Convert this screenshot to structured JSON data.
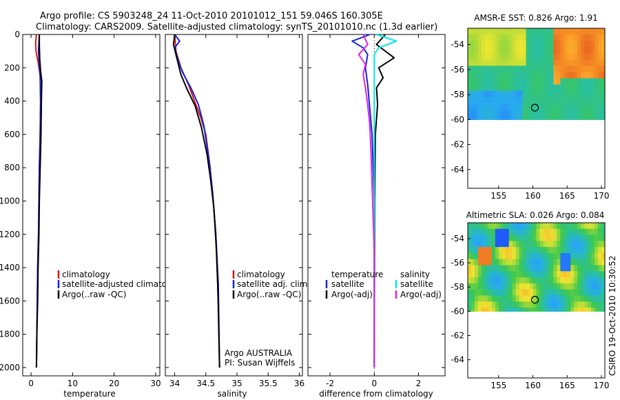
{
  "title_line1": "Argo profile: CS 5903248_24 11-Oct-2010 20101012_151 59.046S 160.305E",
  "title_line2": "Climatology: CARS2009. Satellite-adjusted climatology: synTS_20101010.nc (1.3d earlier)",
  "side_label": "CSIRO 19-Oct-2010 10:30:52",
  "colors": {
    "red": "#e01010",
    "blue": "#1020e0",
    "black": "#000000",
    "cyan": "#00e8e8",
    "magenta": "#e020e0"
  },
  "chart_data": [
    {
      "type": "line",
      "name": "temperature",
      "xlabel": "temperature",
      "xlim": [
        -2,
        31
      ],
      "ylim": [
        2050,
        0
      ],
      "xticks": [
        0,
        10,
        20,
        30
      ],
      "yticks": [
        0,
        200,
        400,
        600,
        800,
        1000,
        1200,
        1400,
        1600,
        1800,
        2000
      ],
      "series": [
        {
          "name": "climatology",
          "color": "red",
          "points": [
            [
              1.3,
              0
            ],
            [
              1.1,
              50
            ],
            [
              1.2,
              100
            ],
            [
              1.8,
              180
            ],
            [
              2.2,
              250
            ],
            [
              2.3,
              400
            ],
            [
              2.2,
              600
            ],
            [
              2.0,
              800
            ],
            [
              1.9,
              1000
            ],
            [
              1.8,
              1200
            ],
            [
              1.6,
              1400
            ],
            [
              1.5,
              1600
            ],
            [
              1.4,
              1800
            ],
            [
              1.3,
              2000
            ]
          ]
        },
        {
          "name": "satellite-adjusted climatology",
          "color": "blue",
          "points": [
            [
              2.0,
              0
            ],
            [
              1.9,
              50
            ],
            [
              1.8,
              100
            ],
            [
              2.0,
              180
            ],
            [
              2.2,
              250
            ],
            [
              2.3,
              400
            ],
            [
              2.2,
              600
            ],
            [
              2.0,
              800
            ],
            [
              1.9,
              1000
            ],
            [
              1.8,
              1200
            ],
            [
              1.6,
              1400
            ],
            [
              1.5,
              1600
            ],
            [
              1.4,
              1800
            ],
            [
              1.3,
              2000
            ]
          ]
        },
        {
          "name": "Argo(..raw -QC)",
          "color": "black",
          "points": [
            [
              2.0,
              0
            ],
            [
              2.0,
              60
            ],
            [
              2.1,
              150
            ],
            [
              2.3,
              220
            ],
            [
              2.6,
              280
            ],
            [
              2.5,
              400
            ],
            [
              2.4,
              600
            ],
            [
              2.2,
              800
            ],
            [
              2.0,
              1000
            ],
            [
              1.9,
              1200
            ],
            [
              1.7,
              1400
            ],
            [
              1.6,
              1600
            ],
            [
              1.4,
              1800
            ],
            [
              1.3,
              2000
            ]
          ]
        }
      ],
      "legend": {
        "labels": [
          "climatology",
          "satellite-adjusted climatology",
          "Argo(..raw -QC)"
        ]
      }
    },
    {
      "type": "line",
      "name": "salinity",
      "xlabel": "salinity",
      "xlim": [
        33.85,
        36.05
      ],
      "ylim": [
        2050,
        0
      ],
      "xticks": [
        34,
        34.5,
        35,
        35.5,
        36
      ],
      "xtick_labels": [
        "34",
        "34.5",
        "35",
        "35.5",
        "36"
      ],
      "series": [
        {
          "name": "climatology",
          "color": "red",
          "points": [
            [
              34.0,
              0
            ],
            [
              34.02,
              100
            ],
            [
              34.1,
              200
            ],
            [
              34.22,
              300
            ],
            [
              34.32,
              400
            ],
            [
              34.42,
              500
            ],
            [
              34.5,
              600
            ],
            [
              34.57,
              800
            ],
            [
              34.62,
              1000
            ],
            [
              34.66,
              1200
            ],
            [
              34.69,
              1500
            ],
            [
              34.72,
              2000
            ]
          ]
        },
        {
          "name": "satellite adj. clim.",
          "color": "blue",
          "points": [
            [
              34.0,
              0
            ],
            [
              34.08,
              40
            ],
            [
              34.0,
              80
            ],
            [
              34.05,
              150
            ],
            [
              34.13,
              230
            ],
            [
              34.26,
              320
            ],
            [
              34.38,
              420
            ],
            [
              34.47,
              550
            ],
            [
              34.55,
              750
            ],
            [
              34.61,
              950
            ],
            [
              34.66,
              1200
            ],
            [
              34.7,
              1500
            ],
            [
              34.72,
              2000
            ]
          ]
        },
        {
          "name": "Argo(..raw -QC)",
          "color": "black",
          "points": [
            [
              34.0,
              0
            ],
            [
              33.98,
              60
            ],
            [
              34.02,
              120
            ],
            [
              34.06,
              180
            ],
            [
              34.1,
              240
            ],
            [
              34.2,
              330
            ],
            [
              34.33,
              430
            ],
            [
              34.43,
              560
            ],
            [
              34.52,
              720
            ],
            [
              34.58,
              880
            ],
            [
              34.63,
              1050
            ],
            [
              34.67,
              1300
            ],
            [
              34.7,
              1600
            ],
            [
              34.72,
              2000
            ]
          ]
        }
      ],
      "legend": {
        "labels": [
          "climatology",
          "satellite adj. clim.",
          "Argo(..raw -QC)"
        ]
      },
      "annotations": [
        "Argo AUSTRALIA",
        "PI: Susan Wijffels"
      ]
    },
    {
      "type": "line",
      "name": "difference",
      "xlabel": "difference from climatology",
      "xlim": [
        -3,
        3.2
      ],
      "ylim": [
        2050,
        0
      ],
      "xticks": [
        -2,
        0,
        2
      ],
      "series": [
        {
          "name": "temperature satellite",
          "color": "blue",
          "points": [
            [
              -0.2,
              0
            ],
            [
              -1.0,
              40
            ],
            [
              -0.5,
              80
            ],
            [
              -0.3,
              120
            ],
            [
              -0.4,
              200
            ],
            [
              -0.3,
              300
            ],
            [
              -0.1,
              600
            ],
            [
              0,
              1000
            ],
            [
              0,
              2000
            ]
          ]
        },
        {
          "name": "temperature Argo(-adj)",
          "color": "black",
          "points": [
            [
              0.5,
              0
            ],
            [
              0.1,
              60
            ],
            [
              0.9,
              140
            ],
            [
              0.2,
              200
            ],
            [
              0.4,
              260
            ],
            [
              0.1,
              320
            ],
            [
              0.15,
              420
            ],
            [
              0.05,
              600
            ],
            [
              0.02,
              1000
            ],
            [
              0,
              2000
            ]
          ]
        },
        {
          "name": "salinity satellite",
          "color": "cyan",
          "points": [
            [
              0.1,
              0
            ],
            [
              1.0,
              40
            ],
            [
              0.2,
              80
            ],
            [
              0,
              120
            ],
            [
              0,
              200
            ],
            [
              0,
              400
            ],
            [
              0,
              1000
            ],
            [
              0,
              2000
            ]
          ]
        },
        {
          "name": "salinity Argo(-adj)",
          "color": "magenta",
          "points": [
            [
              -0.5,
              0
            ],
            [
              -0.3,
              60
            ],
            [
              -0.7,
              120
            ],
            [
              -0.4,
              180
            ],
            [
              -0.5,
              240
            ],
            [
              -0.4,
              320
            ],
            [
              -0.3,
              420
            ],
            [
              -0.2,
              550
            ],
            [
              -0.15,
              700
            ],
            [
              -0.1,
              900
            ],
            [
              -0.05,
              1100
            ],
            [
              0,
              1300
            ],
            [
              0,
              2000
            ]
          ]
        }
      ],
      "legend": {
        "temperature_header": "temperature",
        "salinity_header": "salinity",
        "t_labels": [
          "satellite",
          "Argo(-adj)"
        ],
        "s_labels": [
          "satellite",
          "Argo(-adj)"
        ]
      }
    },
    {
      "type": "heatmap",
      "name": "sst_map",
      "title": "AMSR-E SST: 0.826 Argo: 1.91",
      "xlim": [
        150.5,
        170.5
      ],
      "ylim": [
        -65.5,
        -52.7
      ],
      "xticks": [
        155,
        160,
        165,
        170
      ],
      "yticks": [
        -54,
        -56,
        -58,
        -60,
        -62,
        -64
      ],
      "data_lat_range": [
        -60,
        -52.7
      ],
      "argo_position": [
        160.3,
        -59.05
      ]
    },
    {
      "type": "heatmap",
      "name": "sla_map",
      "title": "Altimetric SLA: 0.026 Argo: 0.084",
      "xlim": [
        150.5,
        170.5
      ],
      "ylim": [
        -65.5,
        -52.7
      ],
      "xticks": [
        155,
        160,
        165,
        170
      ],
      "yticks": [
        -54,
        -56,
        -58,
        -60,
        -62,
        -64
      ],
      "data_lat_range": [
        -60,
        -52.7
      ],
      "argo_position": [
        160.3,
        -59.05
      ]
    }
  ]
}
